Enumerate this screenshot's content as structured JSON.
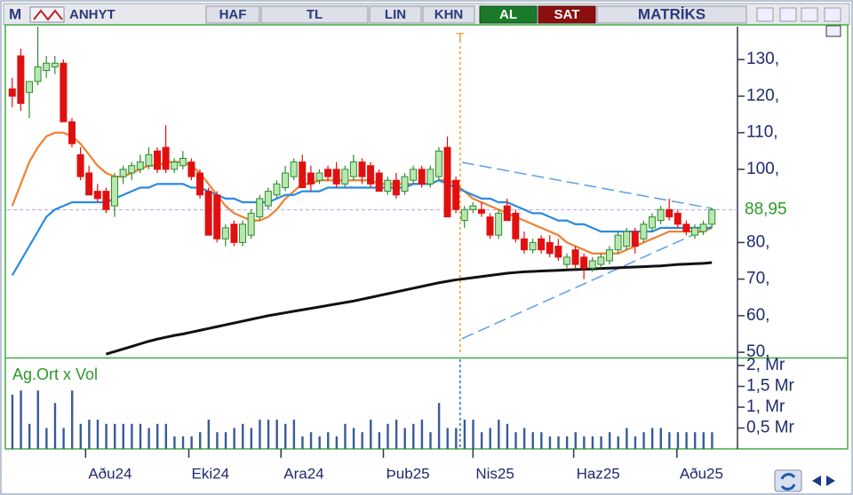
{
  "chart_data": {
    "type": "candlestick",
    "toolbar": {
      "app": "M",
      "symbol": "ANHYT",
      "period": "HAF",
      "currency": "TL",
      "scale": "LIN",
      "chart_style": "KHN",
      "buy": "AL",
      "sell": "SAT",
      "brand": "MATRİKS"
    },
    "x": [
      0,
      1,
      2,
      3,
      4,
      5,
      6,
      7,
      8,
      9,
      10,
      11,
      12,
      13,
      14,
      15,
      16,
      17,
      18,
      19,
      20,
      21,
      22,
      23,
      24,
      25,
      26,
      27,
      28,
      29,
      30,
      31,
      32,
      33,
      34,
      35,
      36,
      37,
      38,
      39,
      40,
      41,
      42,
      43,
      44,
      45,
      46,
      47,
      48,
      49,
      50,
      51,
      52,
      53,
      54,
      55,
      56,
      57,
      58,
      59,
      60,
      61,
      62,
      63,
      64,
      65,
      66,
      67,
      68,
      69,
      70,
      71,
      72,
      73,
      74,
      75,
      76,
      77,
      78,
      79,
      80,
      81,
      82
    ],
    "xlim": [
      -0.6,
      85
    ],
    "xticks": [
      {
        "value": 8.6,
        "label": "Aðu24"
      },
      {
        "value": 20.7,
        "label": "Eki24"
      },
      {
        "value": 31.5,
        "label": "Ara24"
      },
      {
        "value": 43.5,
        "label": "Þub25"
      },
      {
        "value": 54,
        "label": "Nis25"
      },
      {
        "value": 65.8,
        "label": "Haz25"
      },
      {
        "value": 77.9,
        "label": "Aðu25"
      }
    ],
    "ylim": [
      49.3,
      139
    ],
    "yticks": [
      {
        "value": 50,
        "label": "50,"
      },
      {
        "value": 60,
        "label": "60,"
      },
      {
        "value": 70,
        "label": "70,"
      },
      {
        "value": 80,
        "label": "80,"
      },
      {
        "value": 100,
        "label": "100,"
      },
      {
        "value": 110,
        "label": "110,"
      },
      {
        "value": 120,
        "label": "120,"
      },
      {
        "value": 130,
        "label": "130,"
      }
    ],
    "up_color": "#2e8b2e",
    "up_fill": "#b8e8b0",
    "down_color": "#e01010",
    "open": [
      122,
      131,
      121,
      124,
      127,
      128,
      129,
      113,
      104,
      99,
      94,
      94,
      90,
      98,
      99,
      100,
      101,
      105,
      106,
      100,
      101,
      102,
      99,
      94,
      93,
      81,
      85,
      80,
      82,
      87,
      90,
      93,
      95,
      98,
      102,
      99,
      97,
      100,
      100,
      96,
      98,
      102,
      101,
      99,
      94,
      97,
      94,
      97,
      100,
      96,
      98,
      106,
      97,
      86,
      89,
      89,
      87,
      82,
      90,
      88,
      81,
      78,
      81,
      80,
      79,
      74,
      78,
      76,
      73,
      74,
      75,
      78,
      79,
      83,
      81,
      84,
      86,
      89,
      88,
      85,
      82,
      83,
      85
    ],
    "high": [
      125,
      133,
      124,
      139,
      131,
      131,
      130,
      114,
      106,
      101,
      96,
      95,
      99,
      101,
      102,
      104,
      106,
      106,
      112,
      103,
      105,
      103,
      100,
      95,
      94,
      85,
      86,
      86,
      89,
      93,
      95,
      97,
      101,
      103,
      104,
      101,
      100,
      101,
      102,
      101,
      104,
      103,
      102,
      100,
      98,
      99,
      99,
      101,
      101,
      101,
      106,
      109,
      98,
      90,
      91,
      91,
      88,
      89,
      92,
      89,
      83,
      81,
      82,
      82,
      81,
      77,
      79,
      77,
      76,
      77,
      79,
      83,
      84,
      84,
      86,
      88,
      90,
      92,
      89,
      86,
      85,
      86,
      89.5
    ],
    "low": [
      117,
      116,
      114,
      123,
      125,
      126,
      113,
      106,
      97,
      93,
      91,
      88,
      87,
      96,
      97,
      99,
      100,
      99,
      99,
      99,
      100,
      97,
      92,
      82,
      80,
      79,
      79,
      79,
      81,
      86,
      89,
      92,
      94,
      97,
      95,
      94,
      96,
      97,
      95,
      95,
      97,
      96,
      95,
      94,
      93,
      92,
      93,
      96,
      95,
      95,
      97,
      87,
      88,
      84,
      88,
      87,
      81,
      81,
      86,
      80,
      77,
      77,
      77,
      76,
      75,
      73,
      73,
      70,
      72,
      73,
      74,
      77,
      78,
      77,
      80,
      83,
      85,
      86,
      84,
      82,
      81,
      82,
      84
    ],
    "close": [
      120,
      118,
      124,
      128,
      129,
      129,
      113,
      107,
      98,
      93,
      92,
      89,
      98,
      100,
      101,
      102,
      104,
      100,
      100,
      102,
      103,
      98,
      93,
      82,
      81,
      84,
      80,
      85,
      88,
      92,
      94,
      96,
      99,
      102,
      95,
      96,
      99,
      98,
      96,
      100,
      102,
      98,
      96,
      94,
      97,
      93,
      98,
      100,
      96,
      100,
      105,
      87,
      89,
      89,
      90,
      88,
      82,
      88,
      86,
      81,
      78,
      80,
      78,
      77,
      76,
      76,
      74,
      73,
      75,
      76,
      78,
      82,
      83,
      79,
      85,
      87,
      89,
      87,
      85,
      83,
      84,
      85,
      88.95
    ],
    "series": [
      {
        "color": "#f08030",
        "values": [
          90,
          96,
          102,
          106,
          109,
          110,
          110,
          109,
          107,
          104,
          101,
          99,
          98,
          98,
          99,
          100,
          101,
          101,
          102,
          102,
          102,
          101,
          99,
          96,
          93,
          90,
          88,
          87,
          86,
          86,
          87,
          89,
          92,
          94,
          96,
          96,
          97,
          97,
          97,
          97,
          97,
          97,
          97,
          96,
          96,
          96,
          96,
          96,
          96,
          96,
          97,
          97,
          96,
          94,
          92,
          91,
          90,
          89,
          88,
          87,
          86,
          85,
          84,
          83,
          82,
          80,
          79,
          78,
          77,
          77,
          77,
          77,
          78,
          79,
          80,
          81,
          82,
          83,
          83,
          83,
          83,
          83,
          84
        ]
      },
      {
        "color": "#2a8ae0",
        "values": [
          71,
          75,
          79,
          83,
          87,
          89,
          90,
          91,
          91,
          91,
          91,
          91,
          92,
          93,
          94,
          95,
          95,
          96,
          96,
          96,
          96,
          95,
          95,
          94,
          93,
          92,
          92,
          91,
          91,
          91,
          91,
          92,
          93,
          93,
          94,
          94,
          94,
          95,
          95,
          95,
          95,
          95,
          95,
          95,
          95,
          95,
          95,
          96,
          96,
          96,
          97,
          96,
          95,
          94,
          93,
          92,
          92,
          91,
          91,
          90,
          89,
          88,
          88,
          87,
          86,
          86,
          85,
          85,
          84,
          83,
          83,
          83,
          83,
          83,
          83,
          83,
          84,
          84,
          84,
          84,
          84,
          84,
          84
        ]
      },
      {
        "color": "#111111",
        "values": [
          null,
          null,
          null,
          null,
          null,
          null,
          null,
          null,
          null,
          null,
          null,
          49.5,
          50.2,
          50.9,
          51.6,
          52.3,
          53,
          53.6,
          54.1,
          54.6,
          55,
          55.5,
          56,
          56.5,
          57,
          57.5,
          58,
          58.5,
          59,
          59.5,
          60,
          60.4,
          60.8,
          61.2,
          61.6,
          62,
          62.4,
          62.8,
          63.2,
          63.6,
          64,
          64.5,
          65,
          65.5,
          66,
          66.5,
          67,
          67.5,
          68,
          68.5,
          69,
          69.4,
          69.8,
          70.1,
          70.4,
          70.7,
          71,
          71.3,
          71.6,
          71.8,
          72,
          72.1,
          72.2,
          72.3,
          72.4,
          72.5,
          72.6,
          72.7,
          72.8,
          72.9,
          73,
          73.1,
          73.2,
          73.3,
          73.4,
          73.5,
          73.6,
          73.8,
          74,
          74.1,
          74.2,
          74.3,
          74.5
        ]
      }
    ],
    "trendlines": [
      {
        "color": "#5aa0e8",
        "x": [
          52.7,
          82
        ],
        "y": [
          101.9,
          89.3
        ]
      },
      {
        "color": "#5aa0e8",
        "x": [
          52.7,
          82
        ],
        "y": [
          53.7,
          84.4
        ]
      }
    ],
    "last_price": {
      "value": 88.95,
      "label": "88,95",
      "color": "#2a9a2a"
    },
    "marker": {
      "label": "T",
      "x": 52.5,
      "color": "#f0a030"
    },
    "volume": {
      "title": "Ag.Ort x Vol",
      "color": "#3a5a9a",
      "ylim": [
        0,
        2.15
      ],
      "yticks": [
        {
          "value": 0.5,
          "label": "0,5 Mr"
        },
        {
          "value": 1,
          "label": "1, Mr"
        },
        {
          "value": 1.5,
          "label": "1,5 Mr"
        },
        {
          "value": 2,
          "label": "2, Mr"
        }
      ],
      "values": [
        1.3,
        1.4,
        0.6,
        1.4,
        0.5,
        1.1,
        0.5,
        1.4,
        0.6,
        0.7,
        0.7,
        0.6,
        0.6,
        0.6,
        0.6,
        0.6,
        0.5,
        0.6,
        0.6,
        0.3,
        0.3,
        0.3,
        0.4,
        0.7,
        0.4,
        0.4,
        0.5,
        0.6,
        0.5,
        0.7,
        0.7,
        0.7,
        0.6,
        0.7,
        0.3,
        0.4,
        0.3,
        0.4,
        0.3,
        0.6,
        0.5,
        0.4,
        0.7,
        0.4,
        0.6,
        0.7,
        0.5,
        0.6,
        0.7,
        0.4,
        1.1,
        0.5,
        0.5,
        0.7,
        0.7,
        0.4,
        0.5,
        0.7,
        0.6,
        0.4,
        0.5,
        0.4,
        0.4,
        0.3,
        0.3,
        0.3,
        0.4,
        0.3,
        0.3,
        0.3,
        0.4,
        0.3,
        0.5,
        0.3,
        0.4,
        0.5,
        0.5,
        0.4,
        0.4,
        0.4,
        0.4,
        0.4,
        0.4
      ]
    }
  }
}
